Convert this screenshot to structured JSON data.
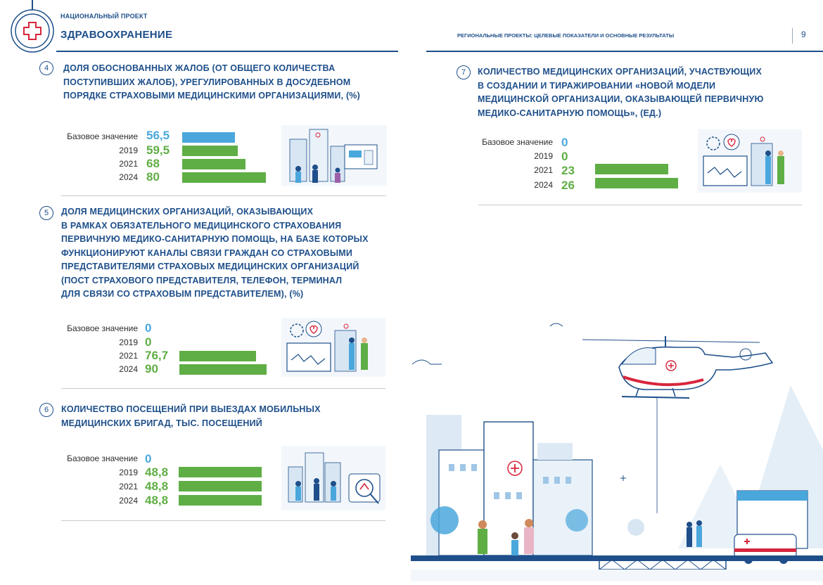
{
  "header": {
    "project_label": "НАЦИОНАЛЬНЫЙ ПРОЕКТ",
    "project_name": "ЗДРАВООХРАНЕНИЕ",
    "section": "РЕГИОНАЛЬНЫЕ ПРОЕКТЫ: ЦЕЛЕВЫЕ ПОКАЗАТЕЛИ И ОСНОВНЫЕ РЕЗУЛЬТАТЫ",
    "page_number": "9"
  },
  "indicators": [
    {
      "number": "4",
      "title": [
        "ДОЛЯ ОБОСНОВАННЫХ ЖАЛОБ (ОТ ОБЩЕГО КОЛИЧЕСТВА",
        "ПОСТУПИВШИХ ЖАЛОБ), УРЕГУЛИРОВАННЫХ В ДОСУДЕБНОМ",
        "ПОРЯДКЕ СТРАХОВЫМИ МЕДИЦИНСКИМИ ОРГАНИЗАЦИЯМИ, (%)"
      ],
      "rows": [
        {
          "label": "Базовое значение",
          "value": "56,5",
          "bar_fraction": 0.63,
          "color": "#4aa7dc"
        },
        {
          "label": "2019",
          "value": "59,5",
          "bar_fraction": 0.66,
          "color": "#5fae45"
        },
        {
          "label": "2021",
          "value": "68",
          "bar_fraction": 0.76,
          "color": "#5fae45"
        },
        {
          "label": "2024",
          "value": "80",
          "bar_fraction": 1.0,
          "color": "#5fae45"
        }
      ]
    },
    {
      "number": "5",
      "title": [
        "ДОЛЯ МЕДИЦИНСКИХ ОРГАНИЗАЦИЙ, ОКАЗЫВАЮЩИХ",
        "В РАМКАХ ОБЯЗАТЕЛЬНОГО МЕДИЦИНСКОГО СТРАХОВАНИЯ",
        "ПЕРВИЧНУЮ МЕДИКО-САНИТАРНУЮ ПОМОЩЬ, НА БАЗЕ КОТОРЫХ",
        "ФУНКЦИОНИРУЮТ КАНАЛЫ СВЯЗИ ГРАЖДАН СО СТРАХОВЫМИ",
        "ПРЕДСТАВИТЕЛЯМИ СТРАХОВЫХ МЕДИЦИНСКИХ ОРГАНИЗАЦИЙ",
        "(ПОСТ СТРАХОВОГО ПРЕДСТАВИТЕЛЯ, ТЕЛЕФОН, ТЕРМИНАЛ",
        "ДЛЯ СВЯЗИ СО СТРАХОВЫМ ПРЕДСТАВИТЕЛЕМ), (%)"
      ],
      "rows": [
        {
          "label": "Базовое значение",
          "value": "0",
          "bar_fraction": 0,
          "color": "#4aa7dc"
        },
        {
          "label": "2019",
          "value": "0",
          "bar_fraction": 0,
          "color": "#5fae45"
        },
        {
          "label": "2021",
          "value": "76,7",
          "bar_fraction": 0.88,
          "color": "#5fae45"
        },
        {
          "label": "2024",
          "value": "90",
          "bar_fraction": 1.0,
          "color": "#5fae45"
        }
      ]
    },
    {
      "number": "6",
      "title": [
        "КОЛИЧЕСТВО ПОСЕЩЕНИЙ ПРИ ВЫЕЗДАХ МОБИЛЬНЫХ",
        "МЕДИЦИНСКИХ БРИГАД, ТЫС. ПОСЕЩЕНИЙ"
      ],
      "rows": [
        {
          "label": "Базовое значение",
          "value": "0",
          "bar_fraction": 0,
          "color": "#4aa7dc"
        },
        {
          "label": "2019",
          "value": "48,8",
          "bar_fraction": 1.0,
          "color": "#5fae45"
        },
        {
          "label": "2021",
          "value": "48,8",
          "bar_fraction": 1.0,
          "color": "#5fae45"
        },
        {
          "label": "2024",
          "value": "48,8",
          "bar_fraction": 1.0,
          "color": "#5fae45"
        }
      ]
    },
    {
      "number": "7",
      "title": [
        "КОЛИЧЕСТВО МЕДИЦИНСКИХ ОРГАНИЗАЦИЙ, УЧАСТВУЮЩИХ",
        "В СОЗДАНИИ И ТИРАЖИРОВАНИИ «НОВОЙ МОДЕЛИ",
        "МЕДИЦИНСКОЙ ОРГАНИЗАЦИИ, ОКАЗЫВАЮЩЕЙ ПЕРВИЧНУЮ",
        "МЕДИКО-САНИТАРНУЮ ПОМОЩЬ», (ЕД.)"
      ],
      "rows": [
        {
          "label": "Базовое значение",
          "value": "0",
          "bar_fraction": 0,
          "color": "#4aa7dc"
        },
        {
          "label": "2019",
          "value": "0",
          "bar_fraction": 0,
          "color": "#5fae45"
        },
        {
          "label": "2021",
          "value": "23",
          "bar_fraction": 0.88,
          "color": "#5fae45"
        },
        {
          "label": "2024",
          "value": "26",
          "bar_fraction": 1.0,
          "color": "#5fae45"
        }
      ]
    }
  ],
  "colors": {
    "primary": "#1e4f8a",
    "accent_blue": "#4aa7dc",
    "accent_green": "#5fae45",
    "red": "#d7263d"
  },
  "icons": [
    "medical-cross-logo-icon",
    "helicopter-icon",
    "ambulance-icon",
    "city-hospital-icon"
  ]
}
